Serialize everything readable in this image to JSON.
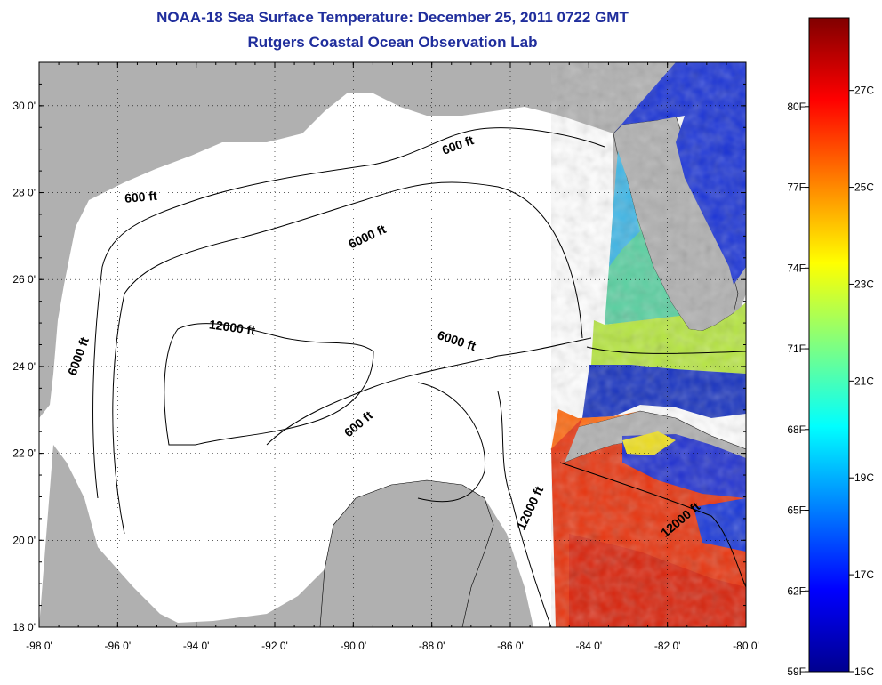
{
  "header": {
    "title": "NOAA-18 Sea Surface Temperature:  December 25, 2011 0722 GMT",
    "subtitle": "Rutgers Coastal Ocean Observation Lab"
  },
  "map": {
    "lon_range": [
      -98,
      -80
    ],
    "lat_range": [
      18,
      31
    ],
    "lon_ticks": [
      {
        "value": -98,
        "label": "-98 0'"
      },
      {
        "value": -96,
        "label": "-96 0'"
      },
      {
        "value": -94,
        "label": "-94 0'"
      },
      {
        "value": -92,
        "label": "-92 0'"
      },
      {
        "value": -90,
        "label": "-90 0'"
      },
      {
        "value": -88,
        "label": "-88 0'"
      },
      {
        "value": -86,
        "label": "-86 0'"
      },
      {
        "value": -84,
        "label": "-84 0'"
      },
      {
        "value": -82,
        "label": "-82 0'"
      },
      {
        "value": -80,
        "label": "-80 0'"
      }
    ],
    "lat_ticks": [
      {
        "value": 18,
        "label": "18 0'"
      },
      {
        "value": 20,
        "label": "20 0'"
      },
      {
        "value": 22,
        "label": "22 0'"
      },
      {
        "value": 24,
        "label": "24 0'"
      },
      {
        "value": 26,
        "label": "26 0'"
      },
      {
        "value": 28,
        "label": "28 0'"
      },
      {
        "value": 30,
        "label": "30 0'"
      }
    ],
    "land_color": "#b0b0b0",
    "water_color": "#ffffff",
    "contour_labels": [
      {
        "text": "600 ft",
        "lon": -87.3,
        "lat": 29.0,
        "rot": -20
      },
      {
        "text": "600 ft",
        "lon": -95.4,
        "lat": 27.8,
        "rot": -5
      },
      {
        "text": "6000 ft",
        "lon": -89.6,
        "lat": 26.9,
        "rot": -25
      },
      {
        "text": "6000 ft",
        "lon": -96.9,
        "lat": 24.2,
        "rot": -70
      },
      {
        "text": "12000 ft",
        "lon": -93.1,
        "lat": 24.8,
        "rot": 8
      },
      {
        "text": "6000 ft",
        "lon": -87.4,
        "lat": 24.5,
        "rot": 18
      },
      {
        "text": "600 ft",
        "lon": -89.8,
        "lat": 22.6,
        "rot": -40
      },
      {
        "text": "12000 ft",
        "lon": -85.4,
        "lat": 20.7,
        "rot": -65
      },
      {
        "text": "12000 ft",
        "lon": -81.6,
        "lat": 20.4,
        "rot": -40
      }
    ]
  },
  "colorbar": {
    "min_c": 15,
    "max_c": 28.5,
    "colors": [
      "#00008f",
      "#0000ff",
      "#0080ff",
      "#00ffff",
      "#80ff80",
      "#ffff00",
      "#ff8000",
      "#ff0000",
      "#800000"
    ],
    "celsius_ticks": [
      {
        "value": 15,
        "label": "15C"
      },
      {
        "value": 17,
        "label": "17C"
      },
      {
        "value": 19,
        "label": "19C"
      },
      {
        "value": 21,
        "label": "21C"
      },
      {
        "value": 23,
        "label": "23C"
      },
      {
        "value": 25,
        "label": "25C"
      },
      {
        "value": 27,
        "label": "27C"
      }
    ],
    "fahrenheit_ticks": [
      {
        "value": 59,
        "label": "59F"
      },
      {
        "value": 62,
        "label": "62F"
      },
      {
        "value": 65,
        "label": "65F"
      },
      {
        "value": 68,
        "label": "68F"
      },
      {
        "value": 71,
        "label": "71F"
      },
      {
        "value": 74,
        "label": "74F"
      },
      {
        "value": 77,
        "label": "77F"
      },
      {
        "value": 80,
        "label": "80F"
      }
    ]
  }
}
